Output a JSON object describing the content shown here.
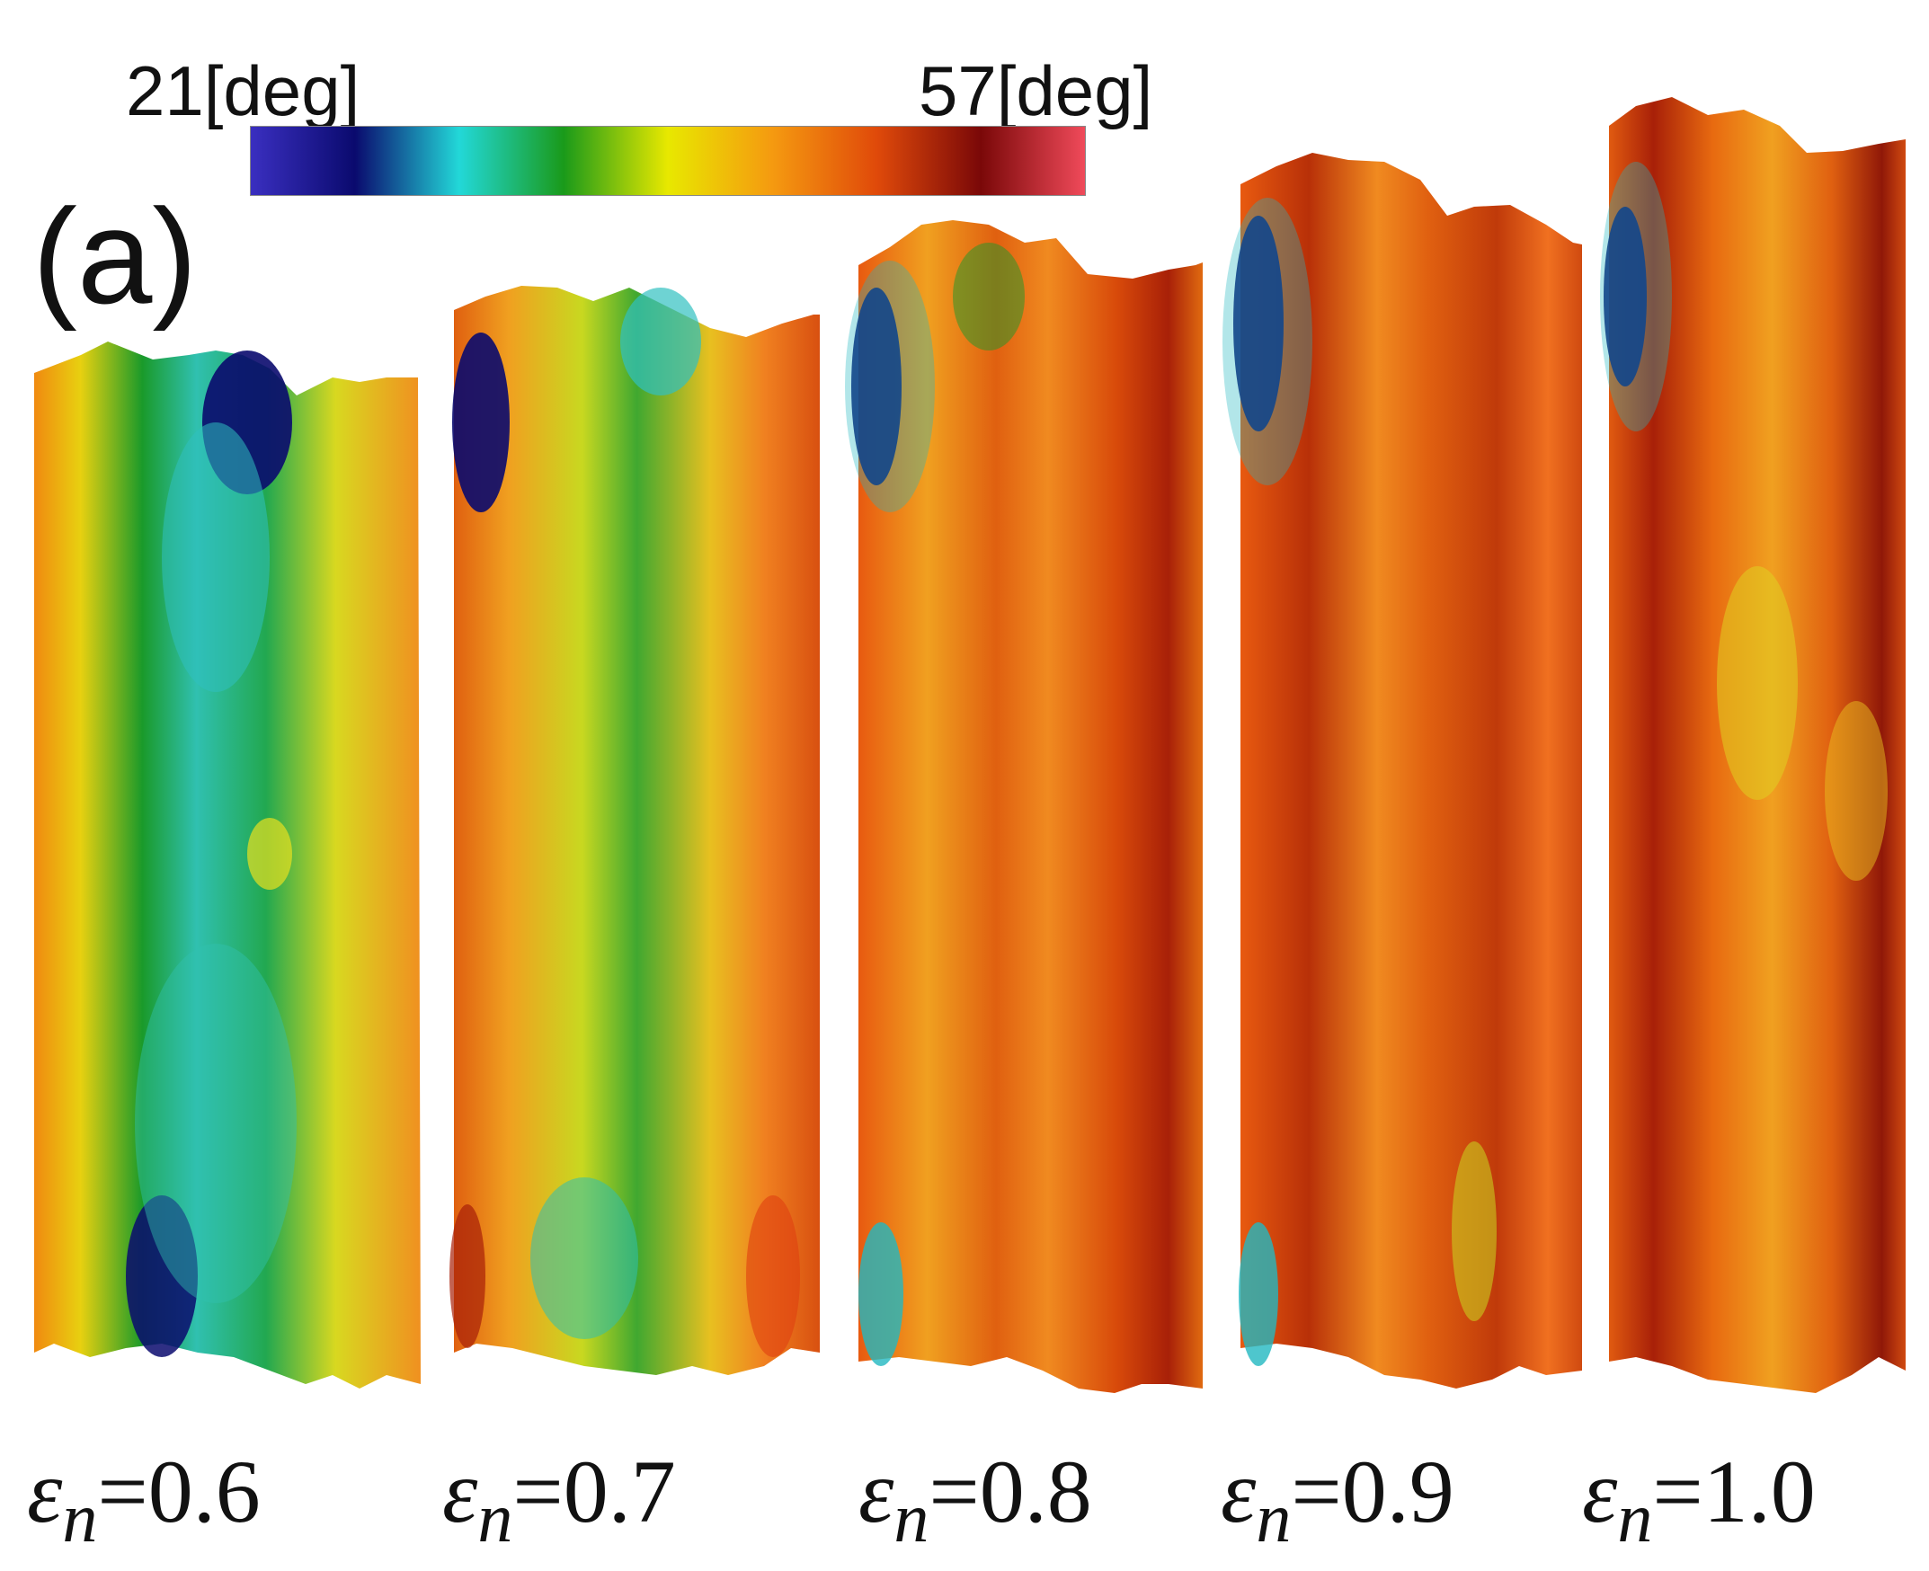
{
  "panel_label": "(a)",
  "colorbar": {
    "min_label": "21[deg]",
    "max_label": "57[deg]",
    "stops": [
      "#3a2fc0",
      "#0a0a6e",
      "#22d8d8",
      "#1a9a1a",
      "#e8e800",
      "#f59a10",
      "#e04a0a",
      "#7a0808",
      "#f04a5a"
    ]
  },
  "strips": [
    {
      "symbol": "ε",
      "subscript": "n",
      "value_text": "=0.6"
    },
    {
      "symbol": "ε",
      "subscript": "n",
      "value_text": "=0.7"
    },
    {
      "symbol": "ε",
      "subscript": "n",
      "value_text": "=0.8"
    },
    {
      "symbol": "ε",
      "subscript": "n",
      "value_text": "=0.9"
    },
    {
      "symbol": "ε",
      "subscript": "n",
      "value_text": "=1.0"
    }
  ]
}
